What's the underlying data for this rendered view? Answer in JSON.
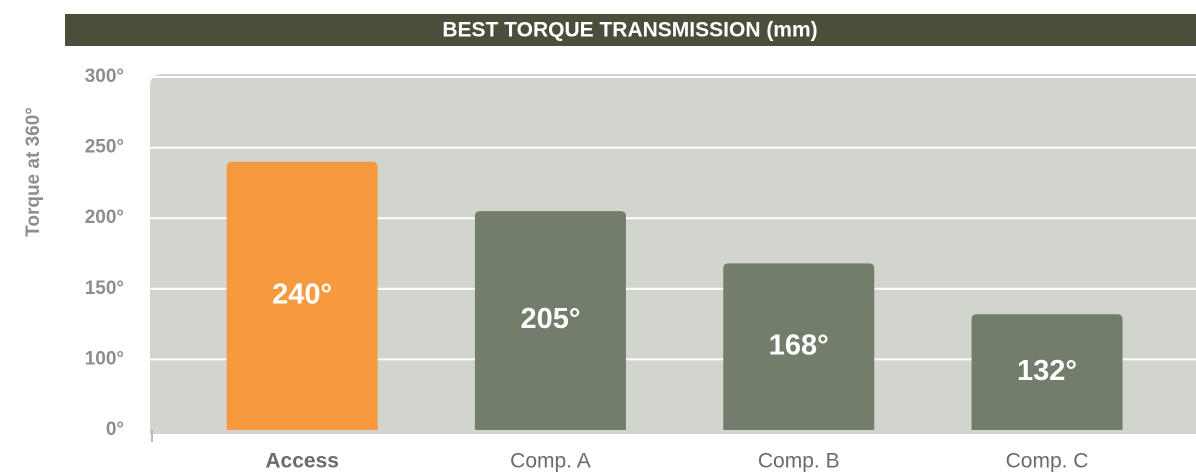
{
  "chart_data": {
    "type": "bar",
    "title": "BEST TORQUE TRANSMISSION (mm)",
    "y_label": "Torque at 360°",
    "categories": [
      "Access",
      "Comp. A",
      "Comp. B",
      "Comp. C"
    ],
    "values": [
      240,
      205,
      168,
      132
    ],
    "value_labels": [
      "240°",
      "205°",
      "168°",
      "132°"
    ],
    "colors": [
      "#f7993f",
      "#737d6b",
      "#737d6b",
      "#737d6b"
    ],
    "ylim": [
      0,
      300
    ],
    "yticks": [
      {
        "value": 0,
        "label": "0°"
      },
      {
        "value": 100,
        "label": "100°"
      },
      {
        "value": 150,
        "label": "150°"
      },
      {
        "value": 200,
        "label": "200°"
      },
      {
        "value": 250,
        "label": "250°"
      },
      {
        "value": 300,
        "label": "300°"
      }
    ],
    "grid": true
  }
}
